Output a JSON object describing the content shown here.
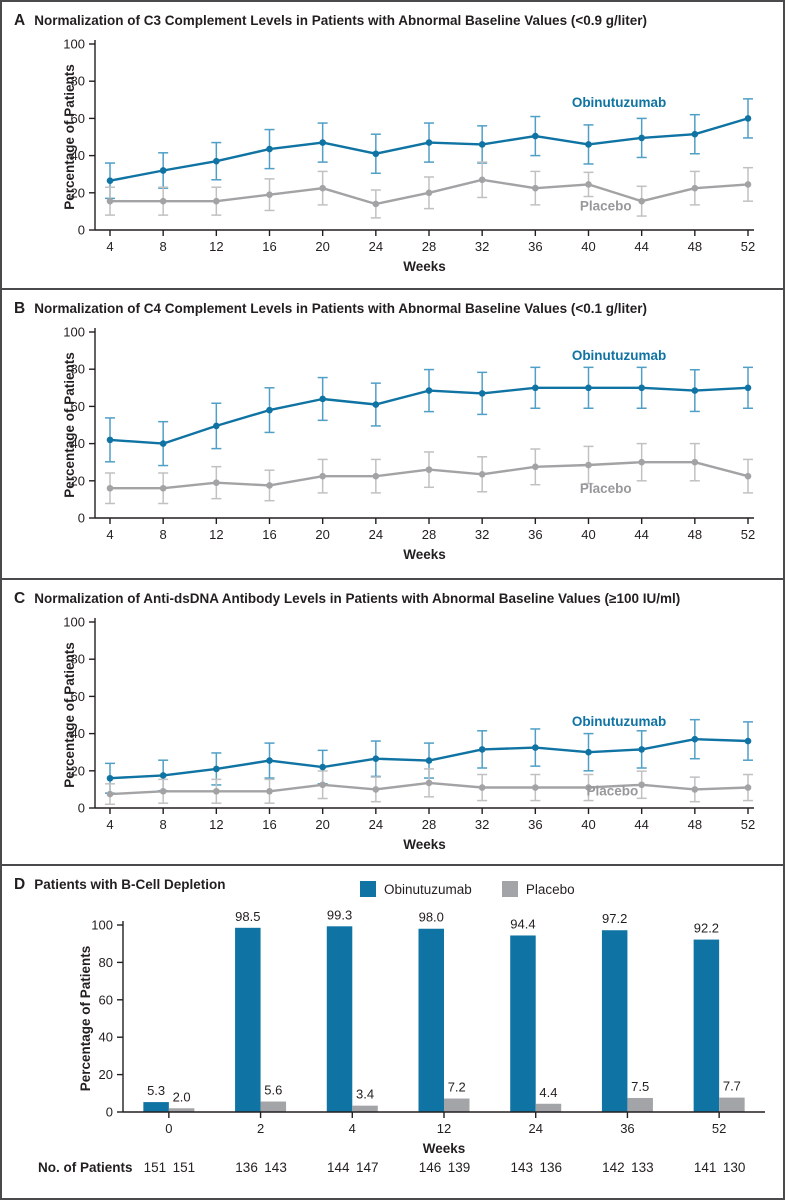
{
  "figure_label": "Figure panels A-D, obinutuzumab vs placebo outcomes",
  "colors": {
    "obinutuzumab": "#0f73a3",
    "obinutuzumab_err": "#4f9fc6",
    "obinutuzumab_label": "#0f73a3",
    "placebo": "#a3a3a5",
    "placebo_err": "#c1c1c3",
    "placebo_bar": "#a2a4a7",
    "placebo_label": "#97989b",
    "axis": "#231f20"
  },
  "chart_data": [
    {
      "type": "line",
      "panel": "A",
      "title": "Normalization of C3 Complement Levels in Patients with Abnormal Baseline Values (<0.9 g/liter)",
      "xlabel": "Weeks",
      "ylabel": "Percentage of Patients",
      "x": [
        4,
        8,
        12,
        16,
        20,
        24,
        28,
        32,
        36,
        40,
        44,
        48,
        52
      ],
      "ylim": [
        0,
        100
      ],
      "yticks": [
        0,
        20,
        40,
        60,
        80,
        100
      ],
      "grid": false,
      "series": [
        {
          "name": "Obinutuzumab",
          "color_key": "obinutuzumab",
          "values": [
            26.5,
            32,
            37,
            43.5,
            47,
            41,
            47,
            46,
            50.5,
            46,
            49.5,
            51.5,
            60
          ],
          "err": [
            9.5,
            9.5,
            10,
            10.5,
            10.5,
            10.5,
            10.5,
            10,
            10.5,
            10.5,
            10.5,
            10.5,
            10.5
          ],
          "label_pos": {
            "x": 42.3,
            "y": 66
          }
        },
        {
          "name": "Placebo",
          "color_key": "placebo",
          "values": [
            15.5,
            15.5,
            15.5,
            19,
            22.5,
            14,
            20,
            27,
            22.5,
            24.5,
            15.5,
            22.5,
            24.5
          ],
          "err": [
            7.5,
            7.5,
            7.5,
            8.5,
            9,
            7.5,
            8.5,
            9.5,
            9,
            6.5,
            8,
            9,
            9
          ],
          "label_pos": {
            "x": 41.3,
            "y": 10.5
          }
        }
      ]
    },
    {
      "type": "line",
      "panel": "B",
      "title": "Normalization of C4 Complement Levels in Patients with Abnormal Baseline Values (<0.1 g/liter)",
      "xlabel": "Weeks",
      "ylabel": "Percentage of Patients",
      "x": [
        4,
        8,
        12,
        16,
        20,
        24,
        28,
        32,
        36,
        40,
        44,
        48,
        52
      ],
      "ylim": [
        0,
        100
      ],
      "yticks": [
        0,
        20,
        40,
        60,
        80,
        100
      ],
      "grid": false,
      "series": [
        {
          "name": "Obinutuzumab",
          "color_key": "obinutuzumab",
          "values": [
            42,
            40,
            49.5,
            58,
            64,
            61,
            68.5,
            67,
            70,
            70,
            70,
            68.5,
            70
          ],
          "err": [
            11.8,
            11.8,
            12.2,
            12,
            11.5,
            11.5,
            11.3,
            11.3,
            11,
            11,
            11,
            11.2,
            11
          ],
          "label_pos": {
            "x": 42.3,
            "y": 85
          }
        },
        {
          "name": "Placebo",
          "color_key": "placebo",
          "values": [
            16,
            16,
            19,
            17.5,
            22.5,
            22.5,
            26,
            23.5,
            27.5,
            28.5,
            30,
            30,
            22.5
          ],
          "err": [
            8.2,
            8.2,
            8.6,
            8.2,
            9,
            9,
            9.5,
            9.4,
            9.6,
            10,
            10,
            10,
            9
          ],
          "label_pos": {
            "x": 41.3,
            "y": 13.5
          }
        }
      ]
    },
    {
      "type": "line",
      "panel": "C",
      "title": "Normalization of Anti-dsDNA Antibody Levels in Patients with Abnormal Baseline Values (≥100 IU/ml)",
      "xlabel": "Weeks",
      "ylabel": "Percentage of Patients",
      "x": [
        4,
        8,
        12,
        16,
        20,
        24,
        28,
        32,
        36,
        40,
        44,
        48,
        52
      ],
      "ylim": [
        0,
        100
      ],
      "yticks": [
        0,
        20,
        40,
        60,
        80,
        100
      ],
      "grid": false,
      "series": [
        {
          "name": "Obinutuzumab",
          "color_key": "obinutuzumab",
          "values": [
            16,
            17.5,
            21,
            25.5,
            22,
            26.5,
            25.5,
            31.5,
            32.5,
            30,
            31.5,
            37,
            36
          ],
          "err": [
            8,
            8.2,
            8.6,
            9.4,
            9,
            9.5,
            9.4,
            10,
            10,
            10,
            10,
            10.5,
            10.3
          ],
          "label_pos": {
            "x": 42.3,
            "y": 44
          }
        },
        {
          "name": "Placebo",
          "color_key": "placebo",
          "values": [
            7.5,
            9,
            9,
            9,
            12.5,
            10,
            13.5,
            11,
            11,
            11,
            12.5,
            10,
            11
          ],
          "err": [
            5.5,
            6.4,
            6.4,
            6.4,
            7.4,
            6.6,
            7.5,
            7,
            7,
            7,
            7.3,
            6.6,
            7
          ],
          "label_pos": {
            "x": 41.8,
            "y": 6.8
          }
        }
      ]
    },
    {
      "type": "bar",
      "panel": "D",
      "title": "Patients with B-Cell Depletion",
      "xlabel": "Weeks",
      "ylabel": "Percentage of Patients",
      "categories": [
        0,
        2,
        4,
        12,
        24,
        36,
        52
      ],
      "ylim": [
        0,
        100
      ],
      "yticks": [
        0,
        20,
        40,
        60,
        80,
        100
      ],
      "grid": false,
      "legend": [
        "Obinutuzumab",
        "Placebo"
      ],
      "legend_position": "top-center",
      "series": [
        {
          "name": "Obinutuzumab",
          "color_key": "obinutuzumab",
          "values": [
            5.3,
            98.5,
            99.3,
            98.0,
            94.4,
            97.2,
            92.2
          ]
        },
        {
          "name": "Placebo",
          "color_key": "placebo_bar",
          "values": [
            2.0,
            5.6,
            3.4,
            7.2,
            4.4,
            7.5,
            7.7
          ]
        }
      ],
      "footer": {
        "label": "No. of Patients",
        "obinutuzumab": [
          151,
          136,
          144,
          146,
          143,
          142,
          141
        ],
        "placebo": [
          151,
          143,
          147,
          139,
          136,
          133,
          130
        ]
      }
    }
  ]
}
